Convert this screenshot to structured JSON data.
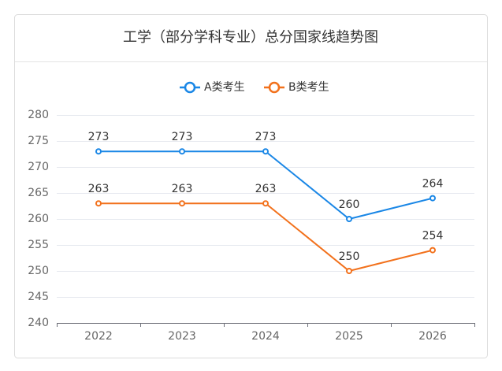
{
  "chart_data": {
    "type": "line",
    "title": "工学（部分学科专业）总分国家线趋势图",
    "categories": [
      "2022",
      "2023",
      "2024",
      "2025",
      "2026"
    ],
    "series": [
      {
        "name": "A类考生",
        "color": "#1a87e6",
        "values": [
          273,
          273,
          273,
          260,
          264
        ]
      },
      {
        "name": "B类考生",
        "color": "#f2711c",
        "values": [
          263,
          263,
          263,
          250,
          254
        ]
      }
    ],
    "ylim": [
      240,
      280
    ],
    "yticks": [
      240,
      245,
      250,
      255,
      260,
      265,
      270,
      275,
      280
    ],
    "grid": true,
    "legend": "top"
  }
}
